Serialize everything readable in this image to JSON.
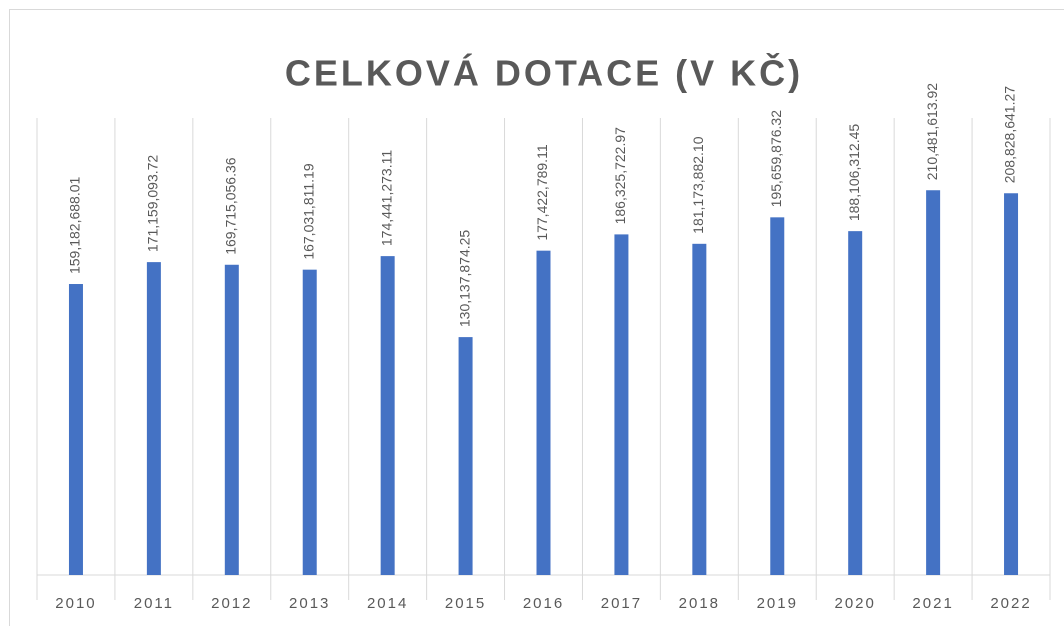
{
  "chart_data": {
    "type": "bar",
    "title": "CELKOVÁ DOTACE (V KČ)",
    "categories": [
      "2010",
      "2011",
      "2012",
      "2013",
      "2014",
      "2015",
      "2016",
      "2017",
      "2018",
      "2019",
      "2020",
      "2021",
      "2022"
    ],
    "values": [
      159182688.01,
      171159093.72,
      169715056.36,
      167031811.19,
      174441273.11,
      130137874.25,
      177422789.11,
      186325722.97,
      181173882.1,
      195659876.32,
      188106312.45,
      210481613.92,
      208828641.27
    ],
    "value_labels": [
      "159,182,688.01",
      "171,159,093.72",
      "169,715,056.36",
      "167,031,811.19",
      "174,441,273.11",
      "130,137,874.25",
      "177,422,789.11",
      "186,325,722.97",
      "181,173,882.10",
      "195,659,876.32",
      "188,106,312.45",
      "210,481,613.92",
      "208,828,641.27"
    ],
    "color": "#4472c4",
    "ylim": [
      0,
      250000000
    ]
  }
}
